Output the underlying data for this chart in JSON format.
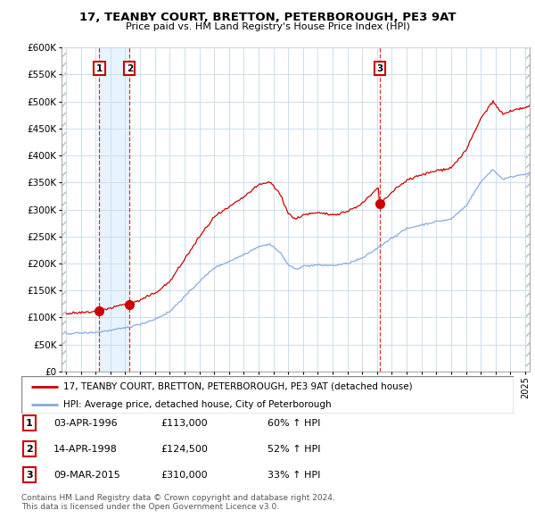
{
  "title": "17, TEANBY COURT, BRETTON, PETERBOROUGH, PE3 9AT",
  "subtitle": "Price paid vs. HM Land Registry's House Price Index (HPI)",
  "legend_line1": "17, TEANBY COURT, BRETTON, PETERBOROUGH, PE3 9AT (detached house)",
  "legend_line2": "HPI: Average price, detached house, City of Peterborough",
  "purchases": [
    {
      "label": "1",
      "date": 1996.25,
      "price": 113000,
      "date_str": "03-APR-1996",
      "price_str": "£113,000",
      "pct": "60%"
    },
    {
      "label": "2",
      "date": 1998.29,
      "price": 124500,
      "date_str": "14-APR-1998",
      "price_str": "£124,500",
      "pct": "52%"
    },
    {
      "label": "3",
      "date": 2015.19,
      "price": 310000,
      "date_str": "09-MAR-2015",
      "price_str": "£310,000",
      "pct": "33%"
    }
  ],
  "footnote1": "Contains HM Land Registry data © Crown copyright and database right 2024.",
  "footnote2": "This data is licensed under the Open Government Licence v3.0.",
  "ylim": [
    0,
    600000
  ],
  "yticks": [
    0,
    50000,
    100000,
    150000,
    200000,
    250000,
    300000,
    350000,
    400000,
    450000,
    500000,
    550000,
    600000
  ],
  "xlim_start": 1993.7,
  "xlim_end": 2025.3,
  "hpi_color": "#88aadd",
  "price_color": "#cc0000",
  "vline_color": "#cc0000",
  "highlight_color": "#ddeeff",
  "grid_color": "#ccddee",
  "hatch_color": "#cccccc"
}
